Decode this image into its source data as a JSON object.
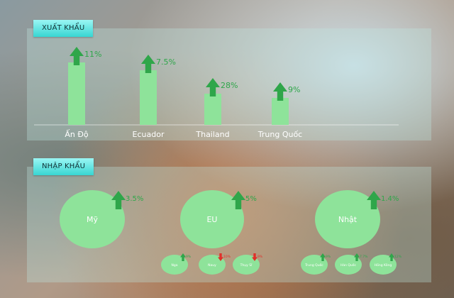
{
  "export_panel": {
    "title": "XUẤT KHẨU"
  },
  "import_panel": {
    "title": "NHẬP KHẨU"
  },
  "chart_data": [
    {
      "type": "bar",
      "title": "XUẤT KHẨU",
      "categories": [
        "Ấn Độ",
        "Ecuador",
        "Thailand",
        "Trung Quốc"
      ],
      "values": [
        11,
        7.5,
        28,
        9
      ],
      "value_labels": [
        "11%",
        "7.5%",
        "28%",
        "9%"
      ],
      "change_direction": [
        "up",
        "up",
        "up",
        "up"
      ],
      "colors": {
        "bar": "#8ee39a",
        "arrow_up": "#2fa64a",
        "label": "#2fa64a"
      }
    },
    {
      "type": "bubble",
      "title": "NHẬP KHẨU",
      "markets": [
        {
          "name": "Mỹ",
          "change": "3.5%",
          "direction": "up"
        },
        {
          "name": "EU",
          "change": "5%",
          "direction": "up"
        },
        {
          "name": "Nhật",
          "change": "1.4%",
          "direction": "up"
        }
      ],
      "sub_markets": [
        {
          "name": "Nga",
          "change": "9%",
          "direction": "up"
        },
        {
          "name": "Nauy",
          "change": "10%",
          "direction": "down"
        },
        {
          "name": "Thụy Sĩ",
          "change": "9%",
          "direction": "down"
        },
        {
          "name": "Trung Quốc",
          "change": "9%",
          "direction": "up"
        },
        {
          "name": "Hàn Quốc",
          "change": "7.7%",
          "direction": "up"
        },
        {
          "name": "Hồng Kông",
          "change": "12%",
          "direction": "up"
        }
      ],
      "colors": {
        "bubble": "#8ee39a",
        "arrow_up": "#2fa64a",
        "arrow_down": "#e0302a",
        "text": "#ffffff"
      }
    }
  ]
}
